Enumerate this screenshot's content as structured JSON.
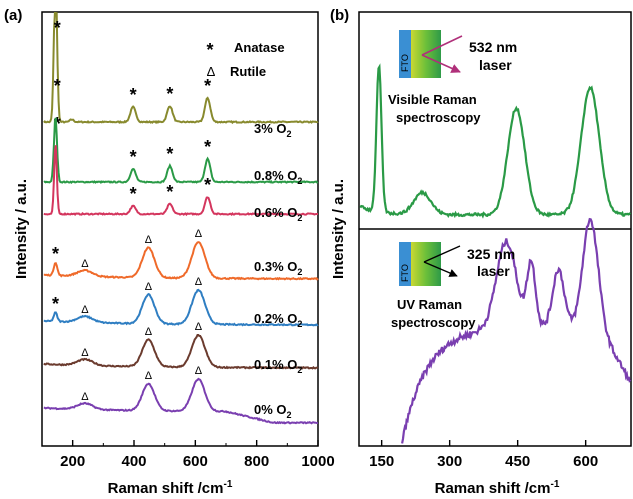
{
  "panel_a": {
    "label": "(a)",
    "ylabel": "Intensity / a.u.",
    "xlabel_main": "Raman shift /cm",
    "xlabel_sup": "-1",
    "xticks": [
      "200",
      "400",
      "600",
      "800",
      "1000"
    ],
    "legend": {
      "anatase_marker": "*",
      "anatase_label": "Anatase",
      "rutile_marker": "Δ",
      "rutile_label": "Rutile"
    },
    "series_labels": [
      {
        "text": "3% O",
        "sub": "2"
      },
      {
        "text": "0.8% O",
        "sub": "2"
      },
      {
        "text": "0.6% O",
        "sub": "2"
      },
      {
        "text": "0.3% O",
        "sub": "2"
      },
      {
        "text": "0.2% O",
        "sub": "2"
      },
      {
        "text": "0.1% O",
        "sub": "2"
      },
      {
        "text": "0% O",
        "sub": "2"
      }
    ]
  },
  "panel_b": {
    "label": "(b)",
    "ylabel": "Intensity / a.u.",
    "xlabel_main": "Raman shift /cm",
    "xlabel_sup": "-1",
    "xticks": [
      "150",
      "300",
      "450",
      "600"
    ],
    "top": {
      "fto": "FTO",
      "laser": "532 nm",
      "laser2": "laser",
      "caption1": "Visible Raman",
      "caption2": "spectroscopy"
    },
    "bottom": {
      "fto": "FTO",
      "laser": "325 nm",
      "laser2": "laser",
      "caption1": "UV Raman",
      "caption2": "spectroscopy"
    }
  },
  "chart_data": [
    {
      "type": "line",
      "panel": "(a)",
      "xlabel": "Raman shift /cm-1",
      "ylabel": "Intensity / a.u.",
      "xlim": [
        100,
        1000
      ],
      "x_ticks": [
        200,
        400,
        600,
        800,
        1000
      ],
      "y_scale": "arbitrary, stacked with vertical offsets",
      "legend": [
        {
          "marker": "*",
          "name": "Anatase"
        },
        {
          "marker": "Δ",
          "name": "Rutile"
        }
      ],
      "series": [
        {
          "name": "3% O2",
          "color": "#888a2e",
          "baseline": 0.6,
          "peaks": [
            {
              "x": 144,
              "height": 15.0,
              "width": 8
            },
            {
              "x": 197,
              "height": 0.25,
              "width": 10
            },
            {
              "x": 397,
              "height": 1.5,
              "width": 14
            },
            {
              "x": 517,
              "height": 1.6,
              "width": 14
            },
            {
              "x": 640,
              "height": 2.4,
              "width": 14
            }
          ],
          "markers": [
            {
              "x": 144,
              "symbol": "*"
            },
            {
              "x": 152,
              "symbol": "*"
            },
            {
              "x": 150,
              "symbol": "*"
            },
            {
              "x": 397,
              "symbol": "*"
            },
            {
              "x": 517,
              "symbol": "*"
            },
            {
              "x": 640,
              "symbol": "*"
            }
          ]
        },
        {
          "name": "0.8% O2",
          "color": "#2a9a46",
          "baseline": 0.6,
          "peaks": [
            {
              "x": 144,
              "height": 6.5,
              "width": 8
            },
            {
              "x": 397,
              "height": 1.3,
              "width": 14
            },
            {
              "x": 517,
              "height": 1.6,
              "width": 14
            },
            {
              "x": 640,
              "height": 2.3,
              "width": 14
            }
          ],
          "markers": [
            {
              "x": 397,
              "symbol": "*"
            },
            {
              "x": 517,
              "symbol": "*"
            },
            {
              "x": 640,
              "symbol": "*"
            }
          ]
        },
        {
          "name": "0.6% O2",
          "color": "#d4365e",
          "baseline": 0.5,
          "peaks": [
            {
              "x": 144,
              "height": 7.0,
              "width": 7
            },
            {
              "x": 397,
              "height": 0.8,
              "width": 14
            },
            {
              "x": 517,
              "height": 1.0,
              "width": 14
            },
            {
              "x": 640,
              "height": 1.7,
              "width": 14
            }
          ],
          "markers": [
            {
              "x": 397,
              "symbol": "*"
            },
            {
              "x": 517,
              "symbol": "*"
            },
            {
              "x": 640,
              "symbol": "*"
            }
          ]
        },
        {
          "name": "0.3% O2",
          "color": "#ef6a2a",
          "baseline": 0.6,
          "peaks": [
            {
              "x": 144,
              "height": 1.3,
              "width": 9
            },
            {
              "x": 240,
              "height": 0.6,
              "width": 40
            },
            {
              "x": 447,
              "height": 3.0,
              "width": 32
            },
            {
              "x": 610,
              "height": 3.6,
              "width": 34
            }
          ],
          "markers": [
            {
              "x": 144,
              "symbol": "*"
            },
            {
              "x": 240,
              "symbol": "Δ"
            },
            {
              "x": 447,
              "symbol": "Δ"
            },
            {
              "x": 610,
              "symbol": "Δ"
            }
          ]
        },
        {
          "name": "0.2% O2",
          "color": "#2f7ec2",
          "baseline": 0.6,
          "peaks": [
            {
              "x": 144,
              "height": 0.9,
              "width": 9
            },
            {
              "x": 240,
              "height": 0.6,
              "width": 40
            },
            {
              "x": 447,
              "height": 2.9,
              "width": 32
            },
            {
              "x": 610,
              "height": 3.4,
              "width": 34
            }
          ],
          "markers": [
            {
              "x": 144,
              "symbol": "*"
            },
            {
              "x": 240,
              "symbol": "Δ"
            },
            {
              "x": 447,
              "symbol": "Δ"
            },
            {
              "x": 610,
              "symbol": "Δ"
            }
          ]
        },
        {
          "name": "0.1% O2",
          "color": "#6b3b2e",
          "baseline": 0.5,
          "peaks": [
            {
              "x": 240,
              "height": 0.6,
              "width": 40
            },
            {
              "x": 447,
              "height": 2.7,
              "width": 32
            },
            {
              "x": 610,
              "height": 3.2,
              "width": 34
            }
          ],
          "markers": [
            {
              "x": 240,
              "symbol": "Δ"
            },
            {
              "x": 447,
              "symbol": "Δ"
            },
            {
              "x": 610,
              "symbol": "Δ"
            }
          ]
        },
        {
          "name": "0% O2",
          "color": "#7a3fb0",
          "baseline": 0.5,
          "peaks": [
            {
              "x": 240,
              "height": 0.6,
              "width": 40
            },
            {
              "x": 447,
              "height": 2.7,
              "width": 32
            },
            {
              "x": 610,
              "height": 3.2,
              "width": 34
            }
          ],
          "markers": [
            {
              "x": 240,
              "symbol": "Δ"
            },
            {
              "x": 447,
              "symbol": "Δ"
            },
            {
              "x": 610,
              "symbol": "Δ"
            }
          ]
        }
      ]
    },
    {
      "type": "line",
      "panel": "(b) top",
      "xlabel": "Raman shift /cm-1",
      "ylabel": "Intensity / a.u.",
      "xlim": [
        100,
        700
      ],
      "x_ticks": [
        150,
        300,
        450,
        600
      ],
      "series": [
        {
          "name": "532 nm laser",
          "color": "#2a9a46",
          "peaks": [
            {
              "x": 144,
              "height": 1.0,
              "width": 9
            },
            {
              "x": 240,
              "height": 0.15,
              "width": 30
            },
            {
              "x": 447,
              "height": 0.73,
              "width": 30
            },
            {
              "x": 610,
              "height": 0.87,
              "width": 32
            }
          ]
        }
      ]
    },
    {
      "type": "line",
      "panel": "(b) bottom",
      "xlabel": "Raman shift /cm-1",
      "ylabel": "Intensity / a.u.",
      "xlim": [
        100,
        700
      ],
      "x_ticks": [
        150,
        300,
        450,
        600
      ],
      "series": [
        {
          "name": "325 nm laser",
          "color": "#7a3fb0",
          "peaks": [
            {
              "x": 425,
              "height": 0.75,
              "width": 35
            },
            {
              "x": 480,
              "height": 0.55,
              "width": 15
            },
            {
              "x": 540,
              "height": 0.5,
              "width": 20
            },
            {
              "x": 610,
              "height": 0.93,
              "width": 26
            }
          ],
          "rises_from": 195,
          "ends_near": 700
        }
      ]
    }
  ]
}
